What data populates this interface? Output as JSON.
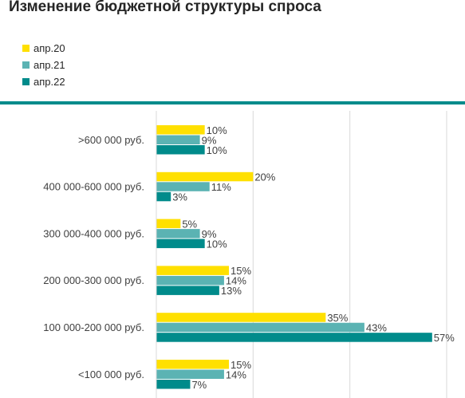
{
  "title": "Изменение бюджетной структуры спроса",
  "colors": {
    "divider": "#008b8b",
    "grid": "#d9d9d9"
  },
  "chart_data": {
    "type": "bar",
    "orientation": "horizontal",
    "title": "Изменение бюджетной структуры спроса",
    "categories": [
      ">600 000 руб.",
      "400 000-600 000 руб.",
      "300 000-400 000 руб.",
      "200 000-300 000 руб.",
      "100 000-200 000 руб.",
      "<100 000 руб."
    ],
    "series": [
      {
        "name": "апр.20",
        "color": "#ffe000",
        "values": [
          10,
          20,
          5,
          15,
          35,
          15
        ]
      },
      {
        "name": "апр.21",
        "color": "#5bb3b3",
        "values": [
          9,
          11,
          9,
          14,
          43,
          14
        ]
      },
      {
        "name": "апр.22",
        "color": "#008b8b",
        "values": [
          10,
          3,
          10,
          13,
          57,
          7
        ]
      }
    ],
    "value_suffix": "%",
    "xlim": [
      0,
      60
    ],
    "grid": true,
    "legend_position": "top-left"
  }
}
